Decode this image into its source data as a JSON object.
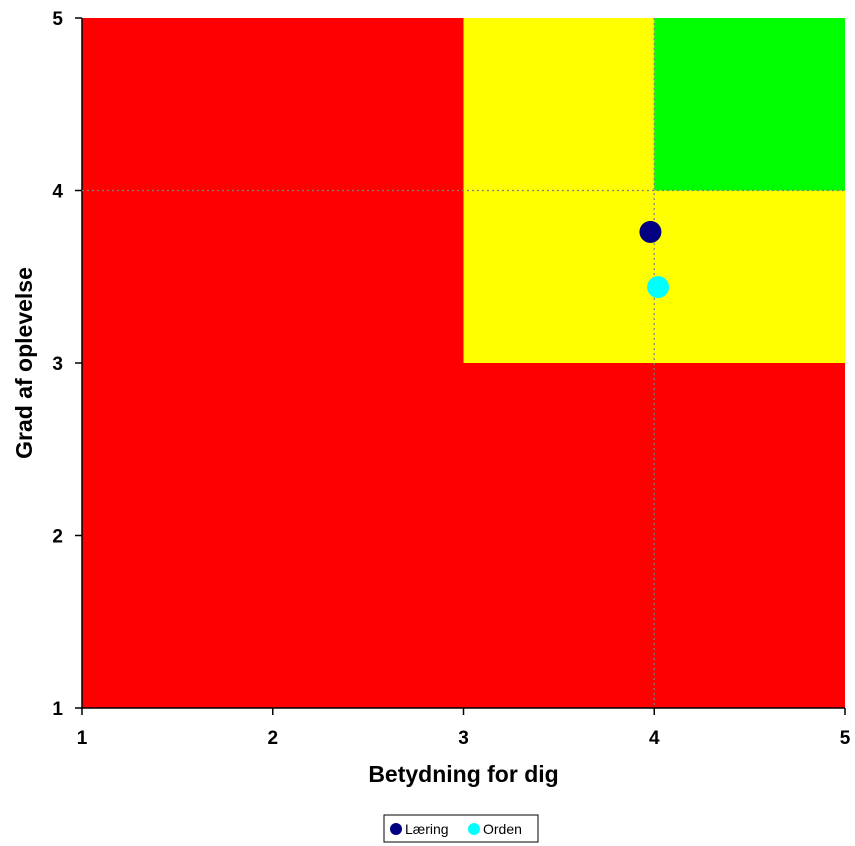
{
  "chart_data": {
    "type": "scatter",
    "xlabel": "Betydning for dig",
    "ylabel": "Grad af oplevelse",
    "xlim": [
      1,
      5
    ],
    "ylim": [
      1,
      5
    ],
    "x_ticks": [
      "1",
      "2",
      "3",
      "4",
      "5"
    ],
    "y_ticks": [
      "1",
      "2",
      "3",
      "4",
      "5"
    ],
    "grid": false,
    "reference_lines": {
      "x": 4,
      "y": 4,
      "style": "dotted"
    },
    "background_zones": [
      {
        "color": "#ff0000",
        "x": [
          1,
          5
        ],
        "y": [
          1,
          5
        ]
      },
      {
        "color": "#ffff00",
        "x": [
          3,
          5
        ],
        "y": [
          3,
          5
        ]
      },
      {
        "color": "#00ff00",
        "x": [
          4,
          5
        ],
        "y": [
          4,
          5
        ]
      }
    ],
    "series": [
      {
        "name": "Læring",
        "color": "#000080",
        "points": [
          {
            "x": 3.98,
            "y": 3.76
          }
        ]
      },
      {
        "name": "Orden",
        "color": "#00ffff",
        "points": [
          {
            "x": 4.02,
            "y": 3.44
          }
        ]
      }
    ],
    "legend_position": "bottom"
  }
}
